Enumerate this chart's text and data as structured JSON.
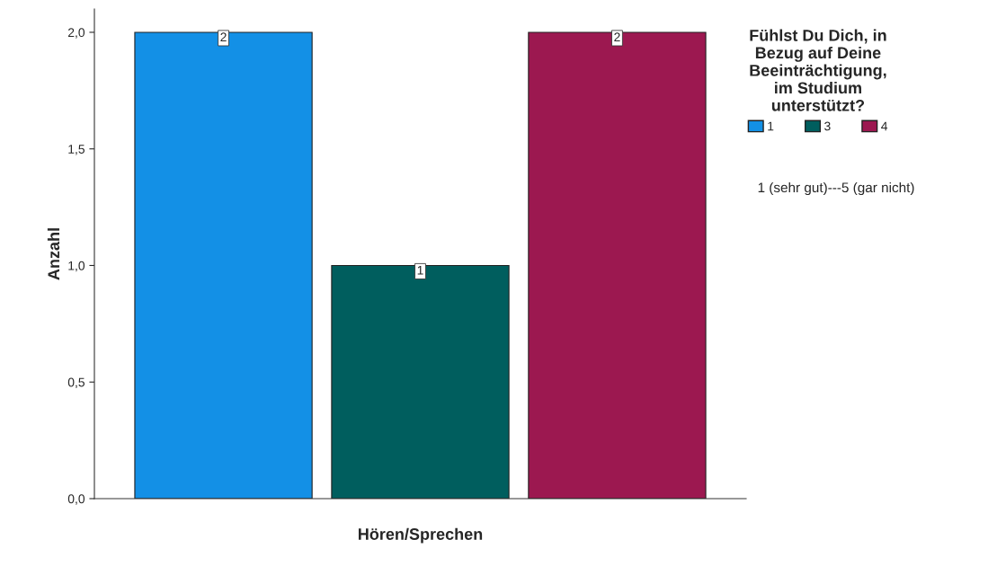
{
  "chart_data": {
    "type": "bar",
    "categories": [
      null
    ],
    "series": [
      {
        "name": "1",
        "color": "#1390e6",
        "values": [
          2
        ]
      },
      {
        "name": "3",
        "color": "#005e5e",
        "values": [
          1
        ]
      },
      {
        "name": "4",
        "color": "#9c1850",
        "values": [
          2
        ]
      }
    ],
    "xlabel": "Hören/Sprechen",
    "ylabel": "Anzahl",
    "legend_title": "Fühlst Du Dich, in\nBezug auf Deine\nBeeinträchtigung,\nim Studium\nunterstützt?",
    "annotations": [
      "1 (sehr gut)---5 (gar nicht)"
    ],
    "ylim": [
      0,
      2.1
    ],
    "yticks": [
      {
        "value": 0,
        "label": "0,0"
      },
      {
        "value": 0.5,
        "label": "0,5"
      },
      {
        "value": 1,
        "label": "1,0"
      },
      {
        "value": 1.5,
        "label": "1,5"
      },
      {
        "value": 2,
        "label": "2,0"
      }
    ],
    "data_labels": true,
    "grid": false,
    "legend": "top right"
  }
}
